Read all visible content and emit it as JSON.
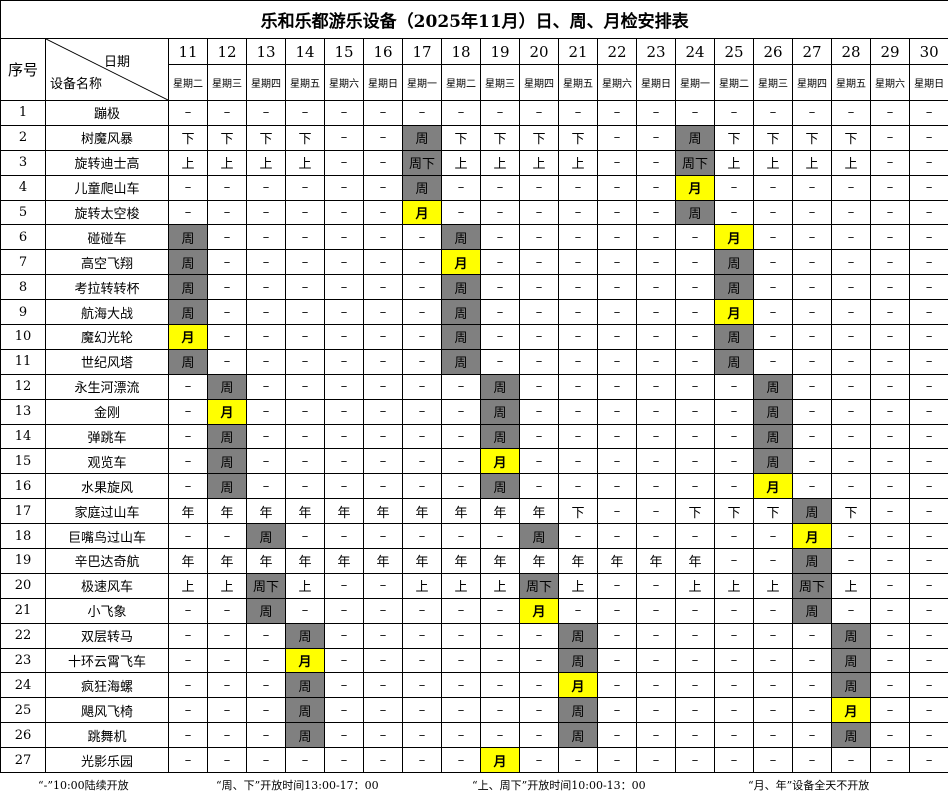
{
  "title": "乐和乐都游乐设备（2025年11月）日、周、月检安排表",
  "header": {
    "seq": "序号",
    "date_label": "日期",
    "name_label": "设备名称"
  },
  "days": [
    "11",
    "12",
    "13",
    "14",
    "15",
    "16",
    "17",
    "18",
    "19",
    "20",
    "21",
    "22",
    "23",
    "24",
    "25",
    "26",
    "27",
    "28",
    "29",
    "30"
  ],
  "weekdays": [
    "星期二",
    "星期三",
    "星期四",
    "星期五",
    "星期六",
    "星期日",
    "星期一",
    "星期二",
    "星期三",
    "星期四",
    "星期五",
    "星期六",
    "星期日",
    "星期一",
    "星期二",
    "星期三",
    "星期四",
    "星期五",
    "星期六",
    "星期日"
  ],
  "colors": {
    "weekly_fill": "#808080",
    "monthly_fill": "#ffff00"
  },
  "rows": [
    {
      "seq": "1",
      "name": "蹦极",
      "cells": [
        "–",
        "–",
        "–",
        "–",
        "–",
        "–",
        "–",
        "–",
        "–",
        "–",
        "–",
        "–",
        "–",
        "–",
        "–",
        "–",
        "–",
        "–",
        "–",
        "–"
      ]
    },
    {
      "seq": "2",
      "name": "树魔风暴",
      "cells": [
        "下",
        "下",
        "下",
        "下",
        "–",
        "–",
        "周",
        "下",
        "下",
        "下",
        "下",
        "–",
        "–",
        "周",
        "下",
        "下",
        "下",
        "下",
        "–",
        "–"
      ]
    },
    {
      "seq": "3",
      "name": "旋转迪士高",
      "cells": [
        "上",
        "上",
        "上",
        "上",
        "–",
        "–",
        "周下",
        "上",
        "上",
        "上",
        "上",
        "–",
        "–",
        "周下",
        "上",
        "上",
        "上",
        "上",
        "–",
        "–"
      ]
    },
    {
      "seq": "4",
      "name": "儿童爬山车",
      "cells": [
        "–",
        "–",
        "–",
        "–",
        "–",
        "–",
        "周",
        "–",
        "–",
        "–",
        "–",
        "–",
        "–",
        "月",
        "–",
        "–",
        "–",
        "–",
        "–",
        "–"
      ]
    },
    {
      "seq": "5",
      "name": "旋转太空梭",
      "cells": [
        "–",
        "–",
        "–",
        "–",
        "–",
        "–",
        "月",
        "–",
        "–",
        "–",
        "–",
        "–",
        "–",
        "周",
        "–",
        "–",
        "–",
        "–",
        "–",
        "–"
      ]
    },
    {
      "seq": "6",
      "name": "碰碰车",
      "cells": [
        "周",
        "–",
        "–",
        "–",
        "–",
        "–",
        "–",
        "周",
        "–",
        "–",
        "–",
        "–",
        "–",
        "–",
        "月",
        "–",
        "–",
        "–",
        "–",
        "–"
      ]
    },
    {
      "seq": "7",
      "name": "高空飞翔",
      "cells": [
        "周",
        "–",
        "–",
        "–",
        "–",
        "–",
        "–",
        "月",
        "–",
        "–",
        "–",
        "–",
        "–",
        "–",
        "周",
        "–",
        "–",
        "–",
        "–",
        "–"
      ]
    },
    {
      "seq": "8",
      "name": "考拉转转杯",
      "cells": [
        "周",
        "–",
        "–",
        "–",
        "–",
        "–",
        "–",
        "周",
        "–",
        "–",
        "–",
        "–",
        "–",
        "–",
        "周",
        "–",
        "–",
        "–",
        "–",
        "–"
      ]
    },
    {
      "seq": "9",
      "name": "航海大战",
      "cells": [
        "周",
        "–",
        "–",
        "–",
        "–",
        "–",
        "–",
        "周",
        "–",
        "–",
        "–",
        "–",
        "–",
        "–",
        "月",
        "–",
        "–",
        "–",
        "–",
        "–"
      ]
    },
    {
      "seq": "10",
      "name": "魔幻光轮",
      "cells": [
        "月",
        "–",
        "–",
        "–",
        "–",
        "–",
        "–",
        "周",
        "–",
        "–",
        "–",
        "–",
        "–",
        "–",
        "周",
        "–",
        "–",
        "–",
        "–",
        "–"
      ]
    },
    {
      "seq": "11",
      "name": "世纪风塔",
      "cells": [
        "周",
        "–",
        "–",
        "–",
        "–",
        "–",
        "–",
        "周",
        "–",
        "–",
        "–",
        "–",
        "–",
        "–",
        "周",
        "–",
        "–",
        "–",
        "–",
        "–"
      ]
    },
    {
      "seq": "12",
      "name": "永生河漂流",
      "cells": [
        "–",
        "周",
        "–",
        "–",
        "–",
        "–",
        "–",
        "–",
        "周",
        "–",
        "–",
        "–",
        "–",
        "–",
        "–",
        "周",
        "–",
        "–",
        "–",
        "–"
      ]
    },
    {
      "seq": "13",
      "name": "金刚",
      "cells": [
        "–",
        "月",
        "–",
        "–",
        "–",
        "–",
        "–",
        "–",
        "周",
        "–",
        "–",
        "–",
        "–",
        "–",
        "–",
        "周",
        "–",
        "–",
        "–",
        "–"
      ]
    },
    {
      "seq": "14",
      "name": "弹跳车",
      "cells": [
        "–",
        "周",
        "–",
        "–",
        "–",
        "–",
        "–",
        "–",
        "周",
        "–",
        "–",
        "–",
        "–",
        "–",
        "–",
        "周",
        "–",
        "–",
        "–",
        "–"
      ]
    },
    {
      "seq": "15",
      "name": "观览车",
      "cells": [
        "–",
        "周",
        "–",
        "–",
        "–",
        "–",
        "–",
        "–",
        "月",
        "–",
        "–",
        "–",
        "–",
        "–",
        "–",
        "周",
        "–",
        "–",
        "–",
        "–"
      ]
    },
    {
      "seq": "16",
      "name": "水果旋风",
      "cells": [
        "–",
        "周",
        "–",
        "–",
        "–",
        "–",
        "–",
        "–",
        "周",
        "–",
        "–",
        "–",
        "–",
        "–",
        "–",
        "月",
        "–",
        "–",
        "–",
        "–"
      ]
    },
    {
      "seq": "17",
      "name": "家庭过山车",
      "cells": [
        "年",
        "年",
        "年",
        "年",
        "年",
        "年",
        "年",
        "年",
        "年",
        "年",
        "下",
        "–",
        "–",
        "下",
        "下",
        "下",
        "周",
        "下",
        "–",
        "–"
      ]
    },
    {
      "seq": "18",
      "name": "巨嘴鸟过山车",
      "cells": [
        "–",
        "–",
        "周",
        "–",
        "–",
        "–",
        "–",
        "–",
        "–",
        "周",
        "–",
        "–",
        "–",
        "–",
        "–",
        "–",
        "月",
        "–",
        "–",
        "–"
      ]
    },
    {
      "seq": "19",
      "name": "辛巴达奇航",
      "cells": [
        "年",
        "年",
        "年",
        "年",
        "年",
        "年",
        "年",
        "年",
        "年",
        "年",
        "年",
        "年",
        "年",
        "年",
        "–",
        "–",
        "周",
        "–",
        "–",
        "–"
      ]
    },
    {
      "seq": "20",
      "name": "极速风车",
      "cells": [
        "上",
        "上",
        "周下",
        "上",
        "–",
        "–",
        "上",
        "上",
        "上",
        "周下",
        "上",
        "–",
        "–",
        "上",
        "上",
        "上",
        "周下",
        "上",
        "–",
        "–"
      ]
    },
    {
      "seq": "21",
      "name": "小飞象",
      "cells": [
        "–",
        "–",
        "周",
        "–",
        "–",
        "–",
        "–",
        "–",
        "–",
        "月",
        "–",
        "–",
        "–",
        "–",
        "–",
        "–",
        "周",
        "–",
        "–",
        "–"
      ]
    },
    {
      "seq": "22",
      "name": "双层转马",
      "cells": [
        "–",
        "–",
        "–",
        "周",
        "–",
        "–",
        "–",
        "–",
        "–",
        "–",
        "周",
        "–",
        "–",
        "–",
        "–",
        "–",
        "–",
        "周",
        "–",
        "–"
      ]
    },
    {
      "seq": "23",
      "name": "十环云霄飞车",
      "cells": [
        "–",
        "–",
        "–",
        "月",
        "–",
        "–",
        "–",
        "–",
        "–",
        "–",
        "周",
        "–",
        "–",
        "–",
        "–",
        "–",
        "–",
        "周",
        "–",
        "–"
      ]
    },
    {
      "seq": "24",
      "name": "疯狂海螺",
      "cells": [
        "–",
        "–",
        "–",
        "周",
        "–",
        "–",
        "–",
        "–",
        "–",
        "–",
        "月",
        "–",
        "–",
        "–",
        "–",
        "–",
        "–",
        "周",
        "–",
        "–"
      ]
    },
    {
      "seq": "25",
      "name": "飓风飞椅",
      "cells": [
        "–",
        "–",
        "–",
        "周",
        "–",
        "–",
        "–",
        "–",
        "–",
        "–",
        "周",
        "–",
        "–",
        "–",
        "–",
        "–",
        "–",
        "月",
        "–",
        "–"
      ]
    },
    {
      "seq": "26",
      "name": "跳舞机",
      "cells": [
        "–",
        "–",
        "–",
        "周",
        "–",
        "–",
        "–",
        "–",
        "–",
        "–",
        "周",
        "–",
        "–",
        "–",
        "–",
        "–",
        "–",
        "周",
        "–",
        "–"
      ]
    },
    {
      "seq": "27",
      "name": "光影乐园",
      "cells": [
        "–",
        "–",
        "–",
        "–",
        "–",
        "–",
        "–",
        "–",
        "月",
        "–",
        "–",
        "–",
        "–",
        "–",
        "–",
        "–",
        "–",
        "–",
        "–",
        "–"
      ]
    }
  ],
  "footer": [
    "“-”10:00陆续开放",
    "“周、下”开放时间13:00-17：00",
    "“上、周下”开放时间10:00-13：00",
    "“月、年”设备全天不开放"
  ]
}
